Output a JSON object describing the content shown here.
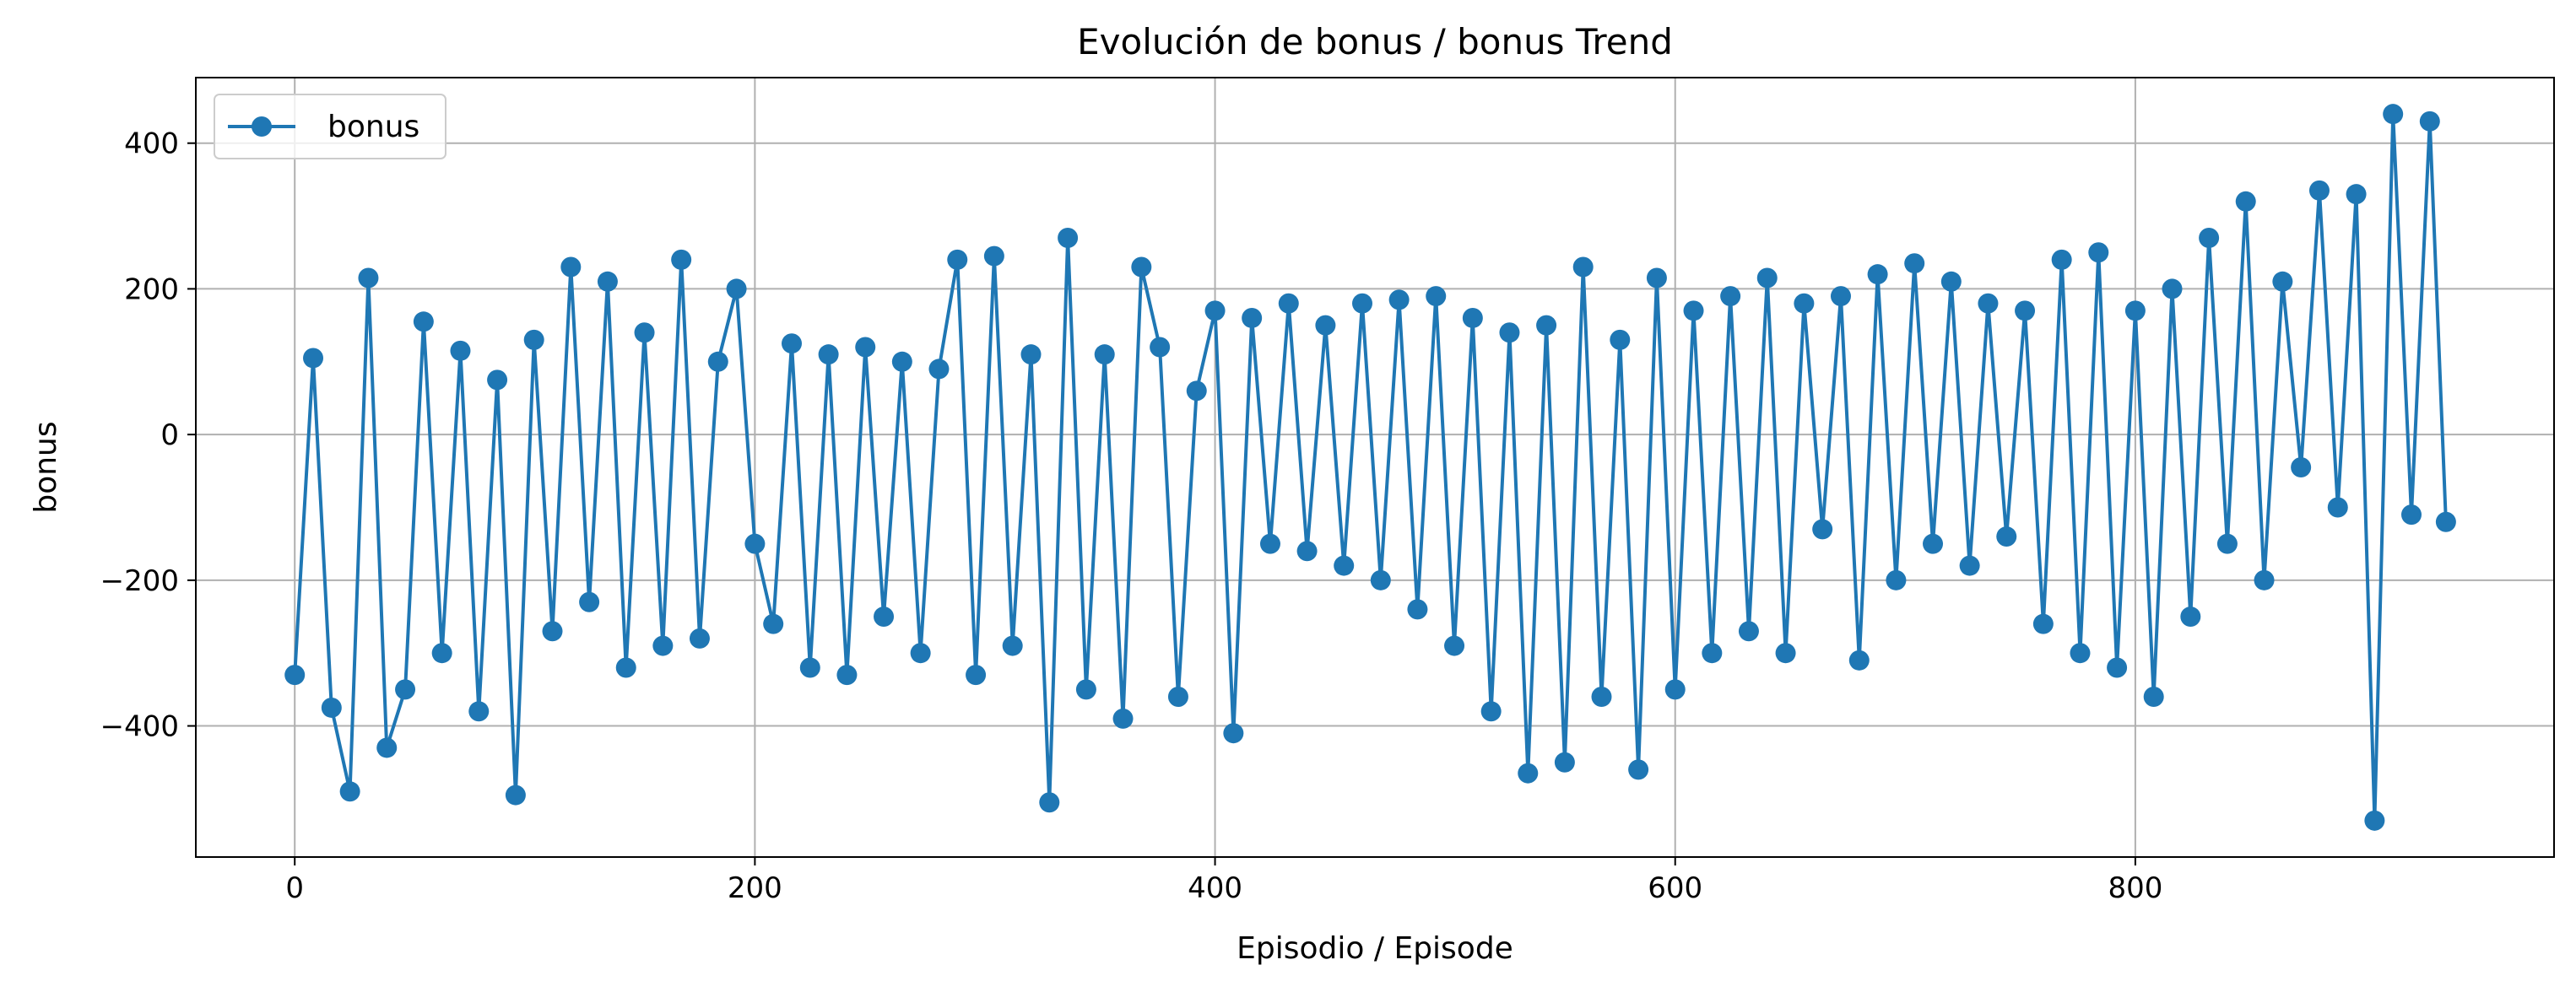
{
  "chart_data": {
    "type": "line",
    "title": "Evolución de bonus / bonus Trend",
    "xlabel": "Episodio / Episode",
    "ylabel": "bonus",
    "xlim": [
      -43,
      982
    ],
    "ylim": [
      -580,
      490
    ],
    "xticks": [
      0,
      200,
      400,
      600,
      800
    ],
    "yticks": [
      -400,
      -200,
      0,
      200,
      400
    ],
    "grid": true,
    "legend": "top-left",
    "series": [
      {
        "name": "bonus",
        "color": "#1f77b4",
        "marker": "circle",
        "x": [
          0,
          8,
          16,
          24,
          32,
          40,
          48,
          56,
          64,
          72,
          80,
          88,
          96,
          104,
          112,
          120,
          128,
          136,
          144,
          152,
          160,
          168,
          176,
          184,
          192,
          200,
          208,
          216,
          224,
          232,
          240,
          248,
          256,
          264,
          272,
          280,
          288,
          296,
          304,
          312,
          320,
          328,
          336,
          344,
          352,
          360,
          368,
          376,
          384,
          392,
          400,
          408,
          416,
          424,
          432,
          440,
          448,
          456,
          464,
          472,
          480,
          488,
          496,
          504,
          512,
          520,
          528,
          536,
          544,
          552,
          560,
          568,
          576,
          584,
          592,
          600,
          608,
          616,
          624,
          632,
          640,
          648,
          656,
          664,
          672,
          680,
          688,
          696,
          704,
          712,
          720,
          728,
          736,
          744,
          752,
          760,
          768,
          776,
          784,
          792,
          800,
          808,
          816,
          824,
          832,
          840,
          848,
          856,
          864,
          872,
          880,
          888,
          896,
          904,
          912,
          920,
          928,
          935
        ],
        "values": [
          -330,
          105,
          -375,
          -490,
          215,
          -430,
          -350,
          155,
          -300,
          115,
          -380,
          75,
          -495,
          130,
          -270,
          230,
          -230,
          210,
          -320,
          140,
          -290,
          240,
          -280,
          100,
          200,
          -150,
          -260,
          125,
          -320,
          110,
          -330,
          120,
          -250,
          100,
          -300,
          90,
          240,
          -330,
          245,
          -290,
          110,
          -505,
          270,
          -350,
          110,
          -390,
          230,
          120,
          -360,
          60,
          170,
          -410,
          160,
          -150,
          180,
          -160,
          150,
          -180,
          180,
          -200,
          185,
          -240,
          190,
          -290,
          160,
          -380,
          140,
          -465,
          150,
          -450,
          230,
          -360,
          130,
          -460,
          215,
          -350,
          170,
          -300,
          190,
          -270,
          215,
          -300,
          180,
          -130,
          190,
          -310,
          220,
          -200,
          235,
          -150,
          210,
          -180,
          180,
          -140,
          170,
          -260,
          240,
          -300,
          250,
          -320,
          170,
          -360,
          200,
          -250,
          270,
          -150,
          320,
          -200,
          210,
          -45,
          335,
          -100,
          330,
          -530,
          440,
          -110,
          430,
          -120
        ]
      }
    ]
  }
}
